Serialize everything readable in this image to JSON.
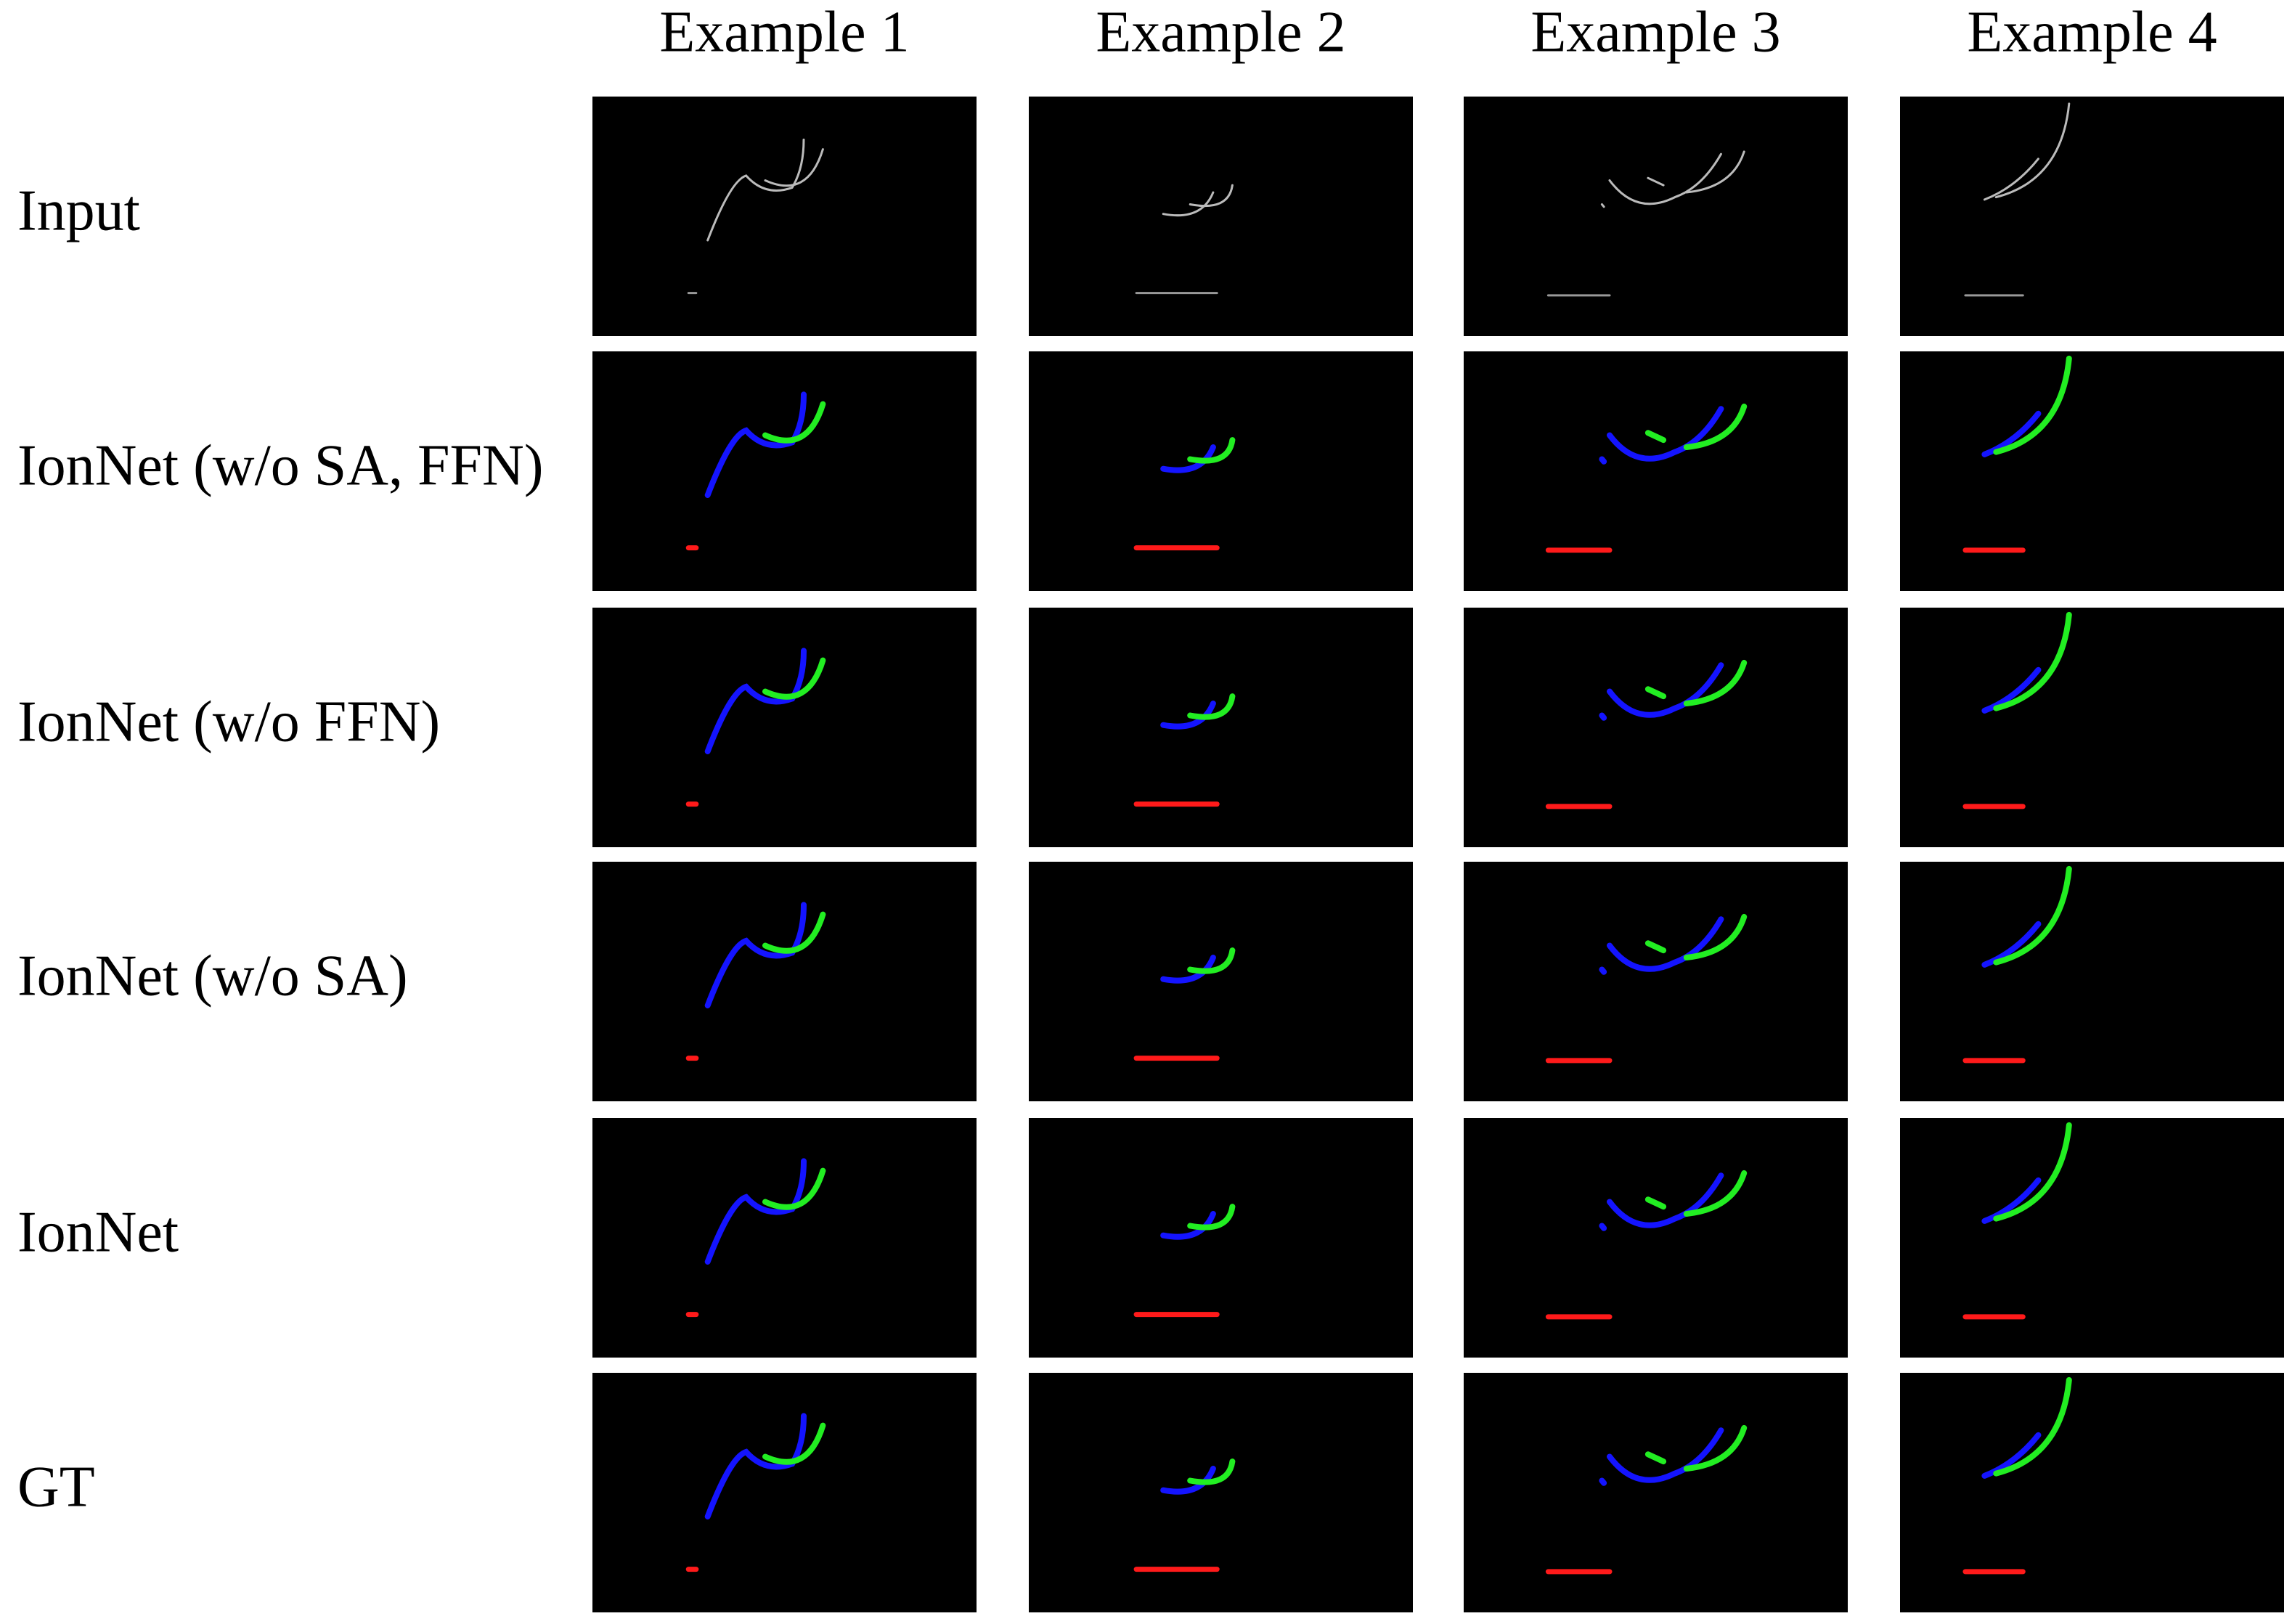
{
  "columns": [
    "Example 1",
    "Example 2",
    "Example 3",
    "Example 4"
  ],
  "rows": [
    "Input",
    "IonNet (w/o SA, FFN)",
    "IonNet (w/o FFN)",
    "IonNet (w/o SA)",
    "IonNet",
    "GT"
  ]
}
